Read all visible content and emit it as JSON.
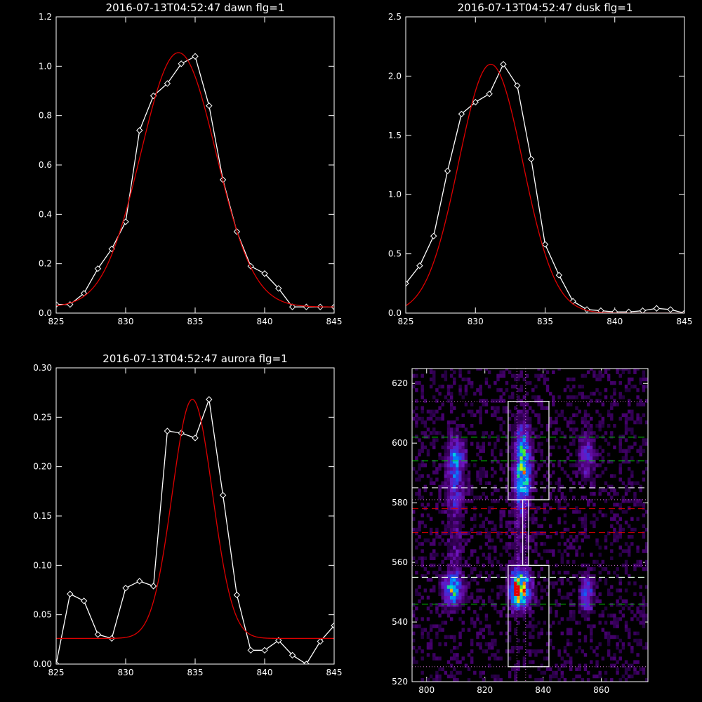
{
  "chart_data": [
    {
      "type": "line",
      "title": "2016-07-13T04:52:47 dawn flg=1",
      "xlim": [
        825,
        845
      ],
      "ylim": [
        0,
        1.2
      ],
      "xticks": [
        "825",
        "830",
        "835",
        "840",
        "845"
      ],
      "yticks": [
        "0.0",
        "0.2",
        "0.4",
        "0.6",
        "0.8",
        "1.0",
        "1.2"
      ],
      "series": [
        {
          "kind": "data",
          "color": "#ffffff",
          "x": [
            825,
            826,
            827,
            828,
            829,
            830,
            831,
            832,
            833,
            834,
            835,
            836,
            837,
            838,
            839,
            840,
            841,
            842,
            843,
            844,
            845
          ],
          "y": [
            0.035,
            0.035,
            0.08,
            0.18,
            0.26,
            0.37,
            0.74,
            0.88,
            0.93,
            1.01,
            1.04,
            0.84,
            0.54,
            0.33,
            0.19,
            0.16,
            0.1,
            0.025,
            0.025,
            0.025,
            0.025
          ]
        },
        {
          "kind": "fit",
          "color": "#dd0000",
          "amp": 1.03,
          "center": 833.8,
          "sigma": 2.7,
          "offset": 0.025
        }
      ]
    },
    {
      "type": "line",
      "title": "2016-07-13T04:52:47 dusk flg=1",
      "xlim": [
        825,
        845
      ],
      "ylim": [
        0,
        2.5
      ],
      "xticks": [
        "825",
        "830",
        "835",
        "840",
        "845"
      ],
      "yticks": [
        "0.0",
        "0.5",
        "1.0",
        "1.5",
        "2.0",
        "2.5"
      ],
      "series": [
        {
          "kind": "data",
          "color": "#ffffff",
          "x": [
            825,
            826,
            827,
            828,
            829,
            830,
            831,
            832,
            833,
            834,
            835,
            836,
            837,
            838,
            839,
            840,
            841,
            842,
            843,
            844,
            845
          ],
          "y": [
            0.25,
            0.4,
            0.65,
            1.2,
            1.68,
            1.78,
            1.85,
            2.1,
            1.92,
            1.3,
            0.58,
            0.32,
            0.1,
            0.03,
            0.02,
            0.01,
            0.01,
            0.02,
            0.04,
            0.03,
            0.0
          ]
        },
        {
          "kind": "fit",
          "color": "#dd0000",
          "amp": 2.1,
          "center": 831.1,
          "sigma": 2.3,
          "offset": 0.0
        }
      ]
    },
    {
      "type": "line",
      "title": "2016-07-13T04:52:47 aurora flg=1",
      "xlim": [
        825,
        845
      ],
      "ylim": [
        0,
        0.3
      ],
      "xticks": [
        "825",
        "830",
        "835",
        "840",
        "845"
      ],
      "yticks": [
        "0.00",
        "0.05",
        "0.10",
        "0.15",
        "0.20",
        "0.25",
        "0.30"
      ],
      "series": [
        {
          "kind": "data",
          "color": "#ffffff",
          "x": [
            825,
            826,
            827,
            828,
            829,
            830,
            831,
            832,
            833,
            834,
            835,
            836,
            837,
            838,
            839,
            840,
            841,
            842,
            843,
            844,
            845
          ],
          "y": [
            0.0,
            0.071,
            0.064,
            0.03,
            0.026,
            0.077,
            0.084,
            0.079,
            0.236,
            0.234,
            0.229,
            0.268,
            0.171,
            0.07,
            0.014,
            0.014,
            0.024,
            0.009,
            0.0,
            0.023,
            0.039
          ]
        },
        {
          "kind": "fit",
          "color": "#dd0000",
          "amp": 0.242,
          "center": 834.8,
          "sigma": 1.45,
          "offset": 0.026
        }
      ]
    },
    {
      "type": "heatmap",
      "title": "",
      "xlim": [
        795,
        876
      ],
      "ylim": [
        520,
        625
      ],
      "xticks": [
        "800",
        "820",
        "840",
        "860"
      ],
      "yticks": [
        "520",
        "540",
        "560",
        "580",
        "600",
        "620"
      ],
      "blobs": [
        {
          "x": 832,
          "y": 551,
          "sx": 2.2,
          "sy": 4,
          "amp": 1.0
        },
        {
          "x": 833,
          "y": 596,
          "sx": 1.8,
          "sy": 7,
          "amp": 0.55
        },
        {
          "x": 833,
          "y": 586,
          "sx": 1.8,
          "sy": 5,
          "amp": 0.42
        },
        {
          "x": 809,
          "y": 551,
          "sx": 2.2,
          "sy": 3.5,
          "amp": 0.55
        },
        {
          "x": 810,
          "y": 594,
          "sx": 2,
          "sy": 5,
          "amp": 0.42
        },
        {
          "x": 810,
          "y": 582,
          "sx": 2,
          "sy": 4,
          "amp": 0.22
        },
        {
          "x": 855,
          "y": 550,
          "sx": 1.5,
          "sy": 4,
          "amp": 0.38
        },
        {
          "x": 855,
          "y": 596,
          "sx": 1.8,
          "sy": 5,
          "amp": 0.26
        },
        {
          "x": 832,
          "y": 570,
          "sx": 2,
          "sy": 9,
          "amp": 0.12
        },
        {
          "x": 810,
          "y": 565,
          "sx": 2,
          "sy": 8,
          "amp": 0.1
        }
      ],
      "boxes": [
        {
          "x0": 828,
          "x1": 842,
          "y0": 581,
          "y1": 614
        },
        {
          "x0": 828,
          "x1": 842,
          "y0": 525,
          "y1": 559
        }
      ],
      "connector": {
        "x0": 833,
        "x1": 835,
        "y0": 559,
        "y1": 581
      },
      "dotted_h": [
        614,
        581,
        559,
        525
      ],
      "dotted_v": [
        831,
        834
      ],
      "dashed_green": [
        602,
        594,
        555,
        546
      ],
      "dashed_white": [
        585,
        555
      ],
      "dashed_red": [
        578,
        570
      ]
    }
  ]
}
